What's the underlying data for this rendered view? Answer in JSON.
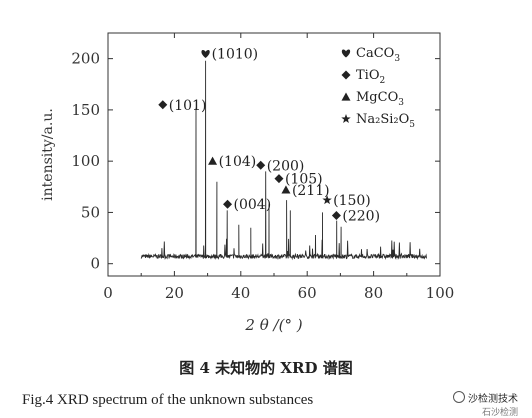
{
  "chart_data": {
    "type": "line",
    "xlabel": "2 θ /(°  )",
    "ylabel": "intensity/a.u.",
    "xlim": [
      0,
      100
    ],
    "ylim": [
      -12,
      225
    ],
    "xticks": [
      0,
      20,
      40,
      60,
      80,
      100
    ],
    "yticks": [
      0,
      50,
      100,
      150,
      200
    ],
    "xtick_labels": [
      "0",
      "20",
      "40",
      "60",
      "80",
      "100"
    ],
    "ytick_labels": [
      "0",
      "50",
      "100",
      "150",
      "200"
    ],
    "grid": false,
    "legend_position": "top-right",
    "legend": [
      {
        "symbol": "heart",
        "label": "CaCO",
        "sub": "3"
      },
      {
        "symbol": "diamond",
        "label": "TiO",
        "sub": "2"
      },
      {
        "symbol": "triangle",
        "label": "MgCO",
        "sub": "3"
      },
      {
        "symbol": "star",
        "label": "Na₂Si₂O",
        "sub": "5"
      }
    ],
    "series": [
      {
        "baseline": 5,
        "peaks": [
          {
            "x": 26.5,
            "y": 152
          },
          {
            "x": 29.4,
            "y": 198
          },
          {
            "x": 32.8,
            "y": 80
          },
          {
            "x": 35.9,
            "y": 52
          },
          {
            "x": 39.4,
            "y": 38
          },
          {
            "x": 43.0,
            "y": 35
          },
          {
            "x": 47.5,
            "y": 90
          },
          {
            "x": 48.5,
            "y": 58
          },
          {
            "x": 53.8,
            "y": 62
          },
          {
            "x": 54.9,
            "y": 52
          },
          {
            "x": 62.5,
            "y": 28
          },
          {
            "x": 64.6,
            "y": 50
          },
          {
            "x": 68.9,
            "y": 42
          },
          {
            "x": 70.2,
            "y": 36
          }
        ]
      }
    ],
    "annotations": [
      {
        "text": "(1010)",
        "symbol": "heart",
        "x": 29.4,
        "y": 205
      },
      {
        "text": "(101)",
        "symbol": "diamond",
        "x": 16.5,
        "y": 155
      },
      {
        "text": "(104)",
        "symbol": "triangle",
        "x": 31.5,
        "y": 100
      },
      {
        "text": "(200)",
        "symbol": "diamond",
        "x": 46.0,
        "y": 96
      },
      {
        "text": "(105)",
        "symbol": "diamond",
        "x": 51.5,
        "y": 83
      },
      {
        "text": "(004)",
        "symbol": "diamond",
        "x": 36.0,
        "y": 58
      },
      {
        "text": "(211)",
        "symbol": "triangle",
        "x": 53.6,
        "y": 72
      },
      {
        "text": "(150)",
        "symbol": "star",
        "x": 66.0,
        "y": 62
      },
      {
        "text": "(220)",
        "symbol": "diamond",
        "x": 68.8,
        "y": 47
      }
    ]
  },
  "caption": {
    "cn": "图 4   未知物的 XRD 谱图",
    "en": "Fig.4   XRD spectrum of the unknown substances"
  },
  "watermark": {
    "line1": "沙检测技术",
    "line2": "石沙检测"
  }
}
